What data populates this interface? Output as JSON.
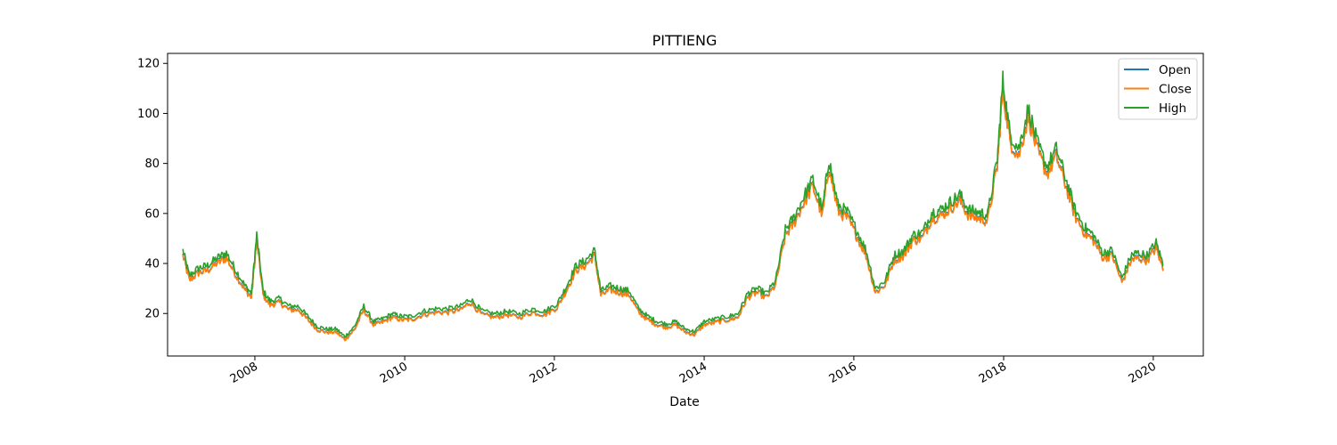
{
  "chart_data": {
    "type": "line",
    "title": "PITTIENG",
    "xlabel": "Date",
    "ylabel": "",
    "x_axis_type": "date",
    "xlim": [
      "2006-11-01",
      "2020-09-01"
    ],
    "ylim": [
      3,
      124
    ],
    "x_ticks": [
      "2008-01-01",
      "2010-01-01",
      "2012-01-01",
      "2014-01-01",
      "2016-01-01",
      "2018-01-01",
      "2020-01-01"
    ],
    "x_tick_labels": [
      "2008",
      "2010",
      "2012",
      "2014",
      "2016",
      "2018",
      "2020"
    ],
    "y_ticks": [
      20,
      40,
      60,
      80,
      100,
      120
    ],
    "y_tick_labels": [
      "20",
      "40",
      "60",
      "80",
      "100",
      "120"
    ],
    "grid": false,
    "legend": "top-right",
    "series": [
      {
        "name": "Open",
        "color": "#1f77b4",
        "offset": -0.6
      },
      {
        "name": "Close",
        "color": "#ff7f0e",
        "offset": -0.9
      },
      {
        "name": "High",
        "color": "#2ca02c",
        "offset": 1.2
      }
    ],
    "x": [
      "2007-01-15",
      "2007-02-15",
      "2007-04-01",
      "2007-05-15",
      "2007-07-01",
      "2007-08-15",
      "2007-10-01",
      "2007-11-15",
      "2007-12-15",
      "2008-01-10",
      "2008-02-10",
      "2008-03-15",
      "2008-05-01",
      "2008-06-15",
      "2008-08-01",
      "2008-09-15",
      "2008-11-01",
      "2008-12-15",
      "2009-02-01",
      "2009-03-15",
      "2009-05-01",
      "2009-06-15",
      "2009-08-01",
      "2009-09-15",
      "2009-11-01",
      "2009-12-15",
      "2010-02-01",
      "2010-04-01",
      "2010-06-01",
      "2010-08-01",
      "2010-10-01",
      "2010-11-15",
      "2011-01-15",
      "2011-03-15",
      "2011-05-15",
      "2011-07-15",
      "2011-09-15",
      "2011-11-15",
      "2012-01-15",
      "2012-03-01",
      "2012-04-15",
      "2012-06-01",
      "2012-07-15",
      "2012-08-15",
      "2012-10-01",
      "2012-11-15",
      "2013-01-01",
      "2013-02-15",
      "2013-04-01",
      "2013-05-15",
      "2013-07-01",
      "2013-08-15",
      "2013-10-01",
      "2013-11-15",
      "2014-01-01",
      "2014-03-01",
      "2014-05-01",
      "2014-06-15",
      "2014-08-01",
      "2014-09-15",
      "2014-11-01",
      "2014-12-15",
      "2015-02-01",
      "2015-03-15",
      "2015-05-01",
      "2015-06-15",
      "2015-08-01",
      "2015-09-01",
      "2015-10-15",
      "2015-12-01",
      "2016-01-15",
      "2016-03-01",
      "2016-04-15",
      "2016-06-01",
      "2016-07-15",
      "2016-09-01",
      "2016-10-15",
      "2016-12-01",
      "2017-01-15",
      "2017-03-01",
      "2017-04-15",
      "2017-06-01",
      "2017-07-15",
      "2017-09-01",
      "2017-10-15",
      "2017-12-01",
      "2017-12-28",
      "2018-02-01",
      "2018-03-15",
      "2018-05-01",
      "2018-06-15",
      "2018-08-01",
      "2018-09-15",
      "2018-11-01",
      "2018-12-15",
      "2019-02-01",
      "2019-03-15",
      "2019-05-01",
      "2019-06-15",
      "2019-08-01",
      "2019-09-15",
      "2019-10-15",
      "2019-12-01",
      "2020-01-15",
      "2020-02-20"
    ],
    "values": [
      44,
      34,
      37,
      38,
      41,
      43,
      36,
      30,
      27,
      50,
      28,
      24,
      25,
      22,
      22,
      18,
      14,
      13,
      13,
      10,
      14,
      22,
      16,
      17,
      19,
      18,
      18,
      20,
      21,
      21,
      22,
      25,
      20,
      19,
      20,
      19,
      21,
      20,
      23,
      30,
      38,
      40,
      44,
      28,
      30,
      29,
      28,
      21,
      18,
      16,
      15,
      16,
      13,
      12,
      16,
      17,
      18,
      19,
      27,
      29,
      27,
      32,
      52,
      57,
      65,
      72,
      60,
      80,
      62,
      59,
      52,
      44,
      29,
      32,
      42,
      44,
      50,
      51,
      59,
      60,
      63,
      66,
      60,
      59,
      58,
      80,
      111,
      90,
      84,
      100,
      86,
      77,
      84,
      72,
      60,
      53,
      50,
      43,
      44,
      33,
      42,
      43,
      42,
      47,
      38
    ]
  }
}
